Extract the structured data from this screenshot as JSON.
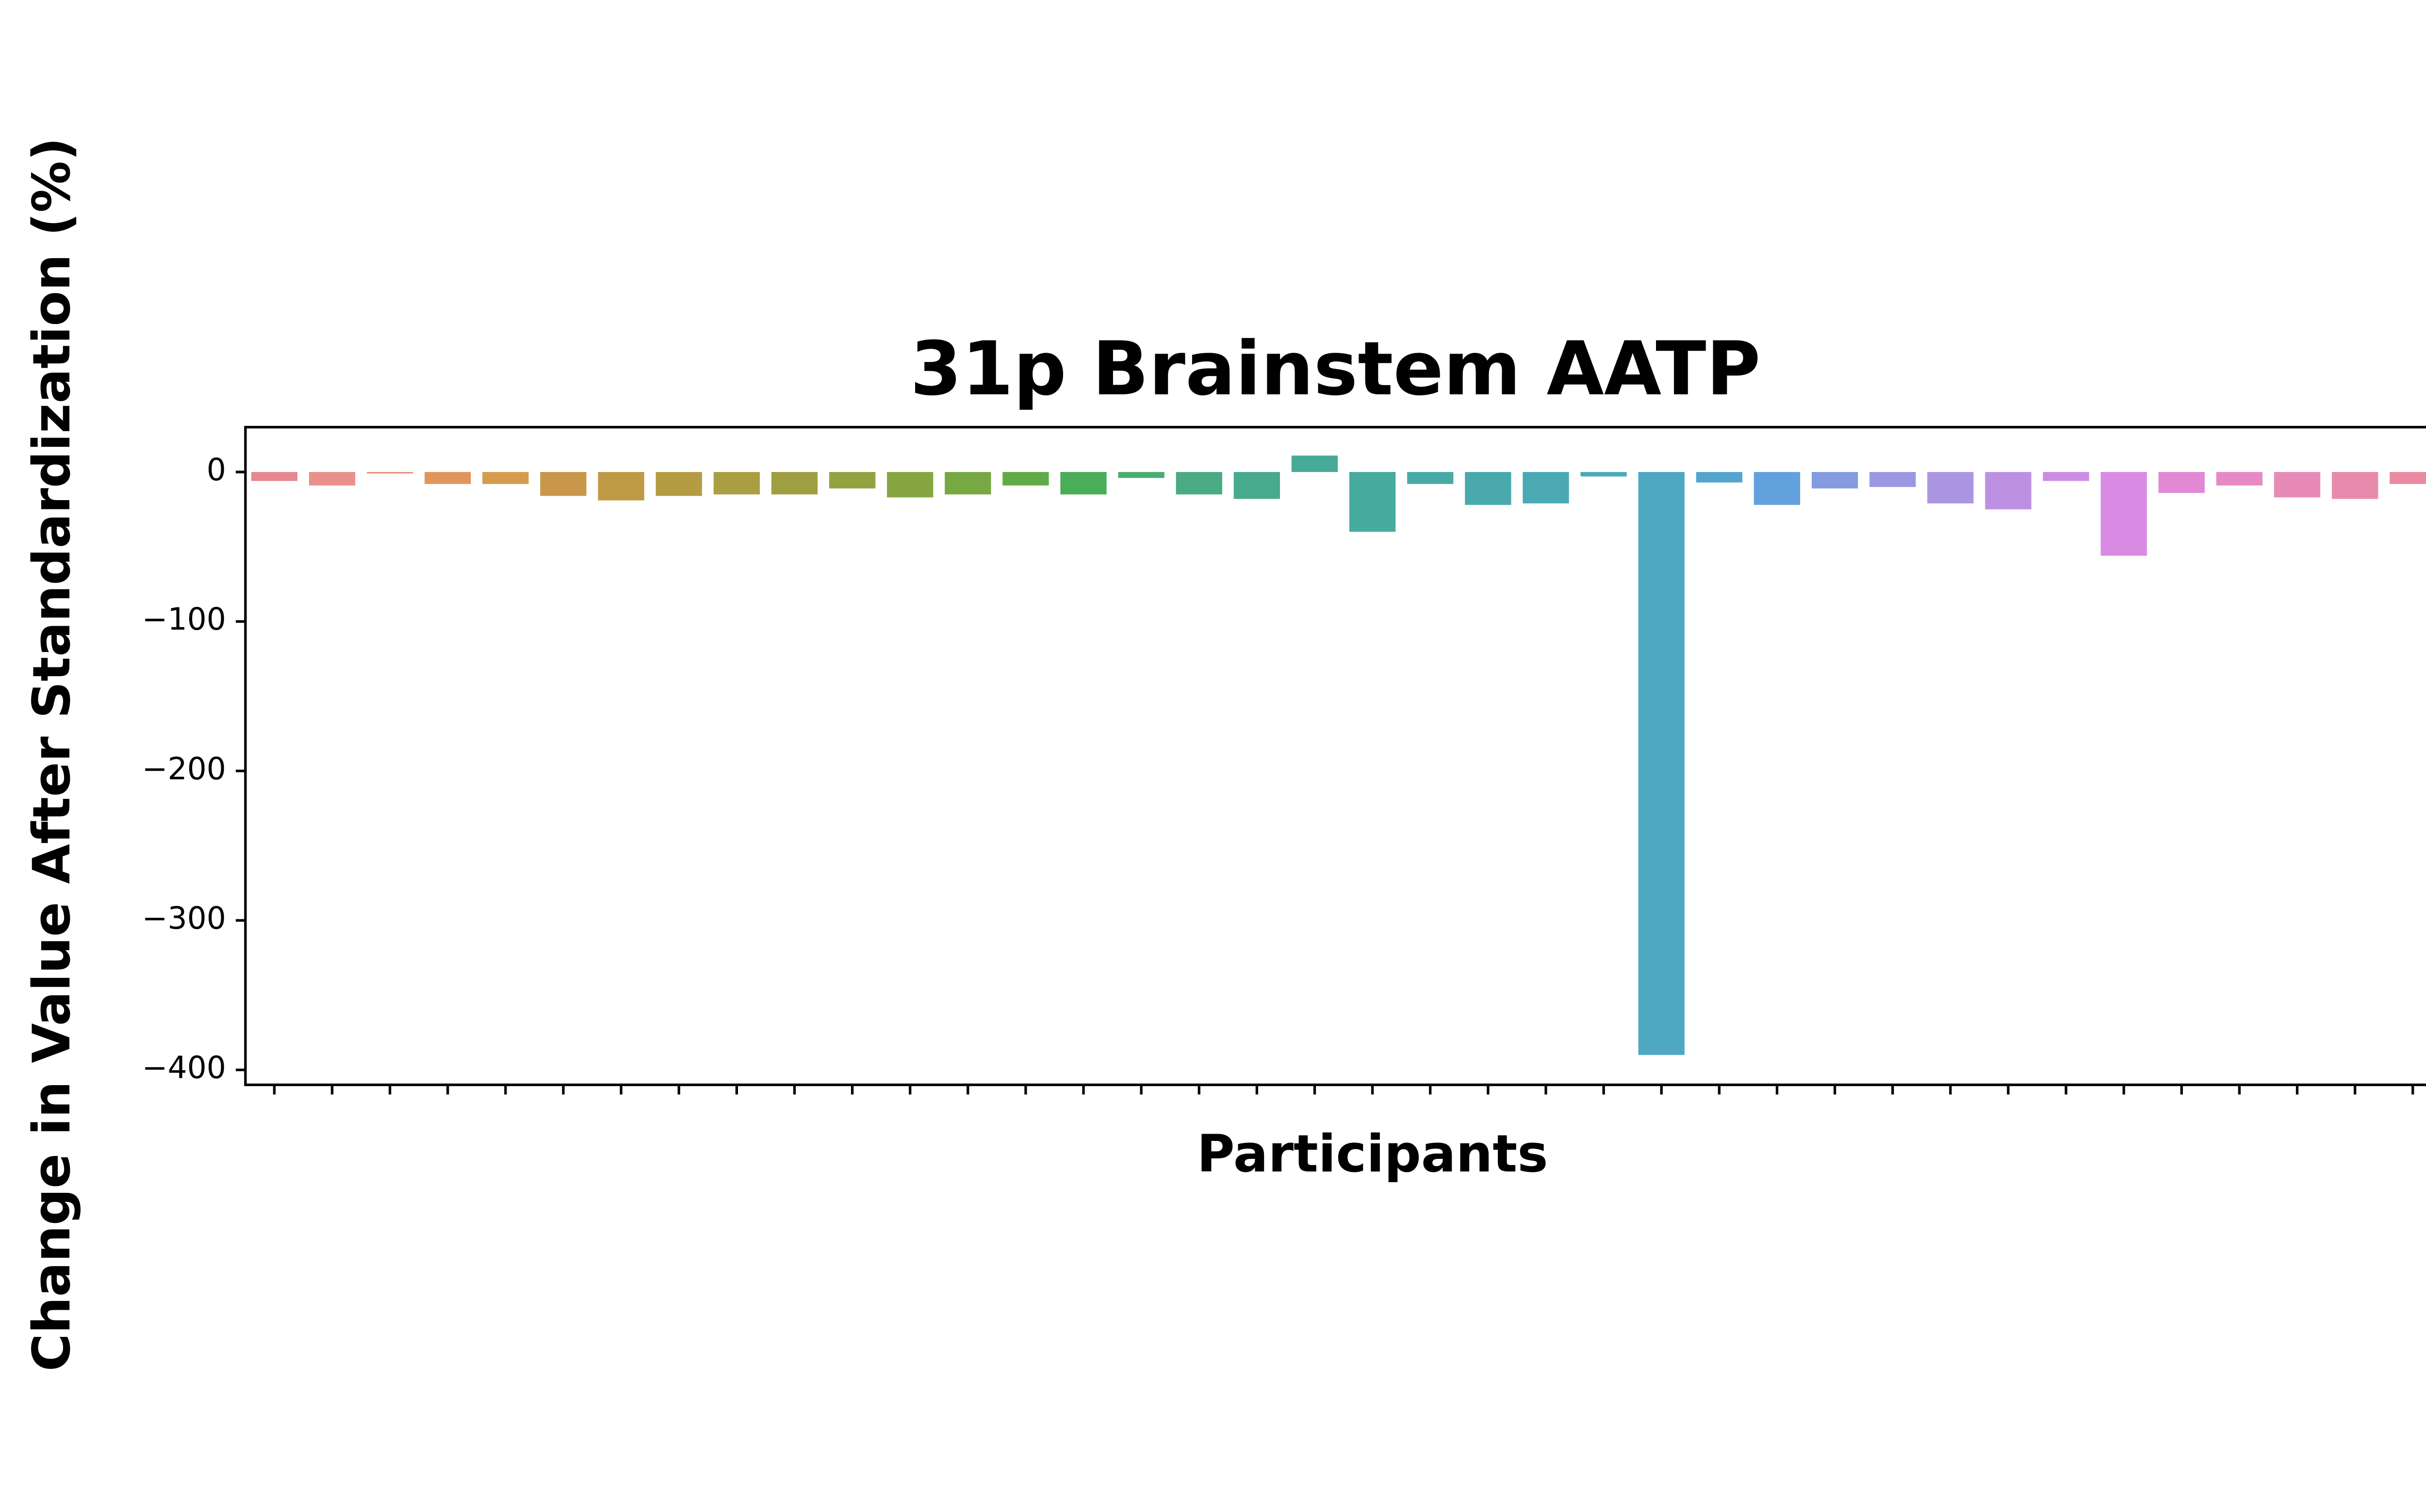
{
  "chart_data": {
    "type": "bar",
    "title": "31p Brainstem AATP",
    "x_label": "Participants",
    "y_label": "Change in Value After Standardization (%)",
    "categories": [
      null,
      null,
      null,
      null,
      null,
      null,
      null,
      null,
      null,
      null,
      null,
      null,
      null,
      null,
      null,
      null,
      null,
      null,
      null,
      null,
      null,
      null,
      null,
      null,
      null,
      null,
      null,
      null,
      null,
      null,
      null,
      null,
      null,
      null,
      null,
      null,
      null,
      null,
      null
    ],
    "values": [
      -6,
      -9,
      -1,
      -8,
      -8,
      -16,
      -19,
      -16,
      -15,
      -15,
      -11,
      -17,
      -15,
      -9,
      -15,
      -4,
      -15,
      -18,
      11,
      -40,
      -8,
      -22,
      -21,
      -3,
      -390,
      -7,
      -22,
      -11,
      -10,
      -21,
      -25,
      -6,
      -56,
      -14,
      -9,
      -17,
      -18,
      -8,
      -15
    ],
    "colors": [
      "#e88790",
      "#e8908a",
      "#e5957a",
      "#e0955c",
      "#d69b4c",
      "#c9974a",
      "#bf9a45",
      "#b39c43",
      "#aa9e42",
      "#a09f41",
      "#95a241",
      "#87a641",
      "#77a842",
      "#60ab45",
      "#4aad57",
      "#49ab73",
      "#48ab82",
      "#47aa8d",
      "#46aa96",
      "#47ab9e",
      "#48aaa6",
      "#49a9ad",
      "#4aa9b3",
      "#4ba8ba",
      "#4ea8c2",
      "#54a5ce",
      "#63a0de",
      "#849be0",
      "#9a98e2",
      "#ab95e3",
      "#bc91e3",
      "#cb8de3",
      "#d98be3",
      "#e388d5",
      "#e689c6",
      "#e78ab8",
      "#e88aac",
      "#e88ba1",
      "#e88c97"
    ],
    "ylim": [
      -410,
      30
    ],
    "yticks": [
      0,
      {
        "value": -100,
        "label": "−100"
      },
      {
        "value": -200,
        "label": "−200"
      },
      {
        "value": -300,
        "label": "−300"
      },
      {
        "value": -400,
        "label": "−400"
      }
    ],
    "grid": false
  }
}
